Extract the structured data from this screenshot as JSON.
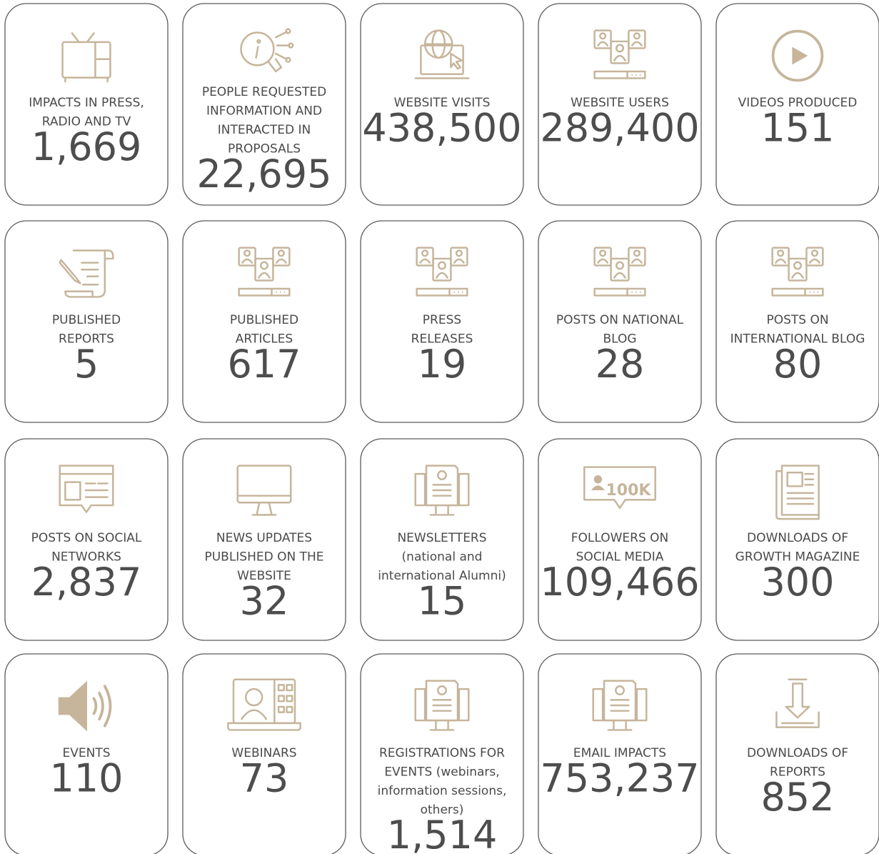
{
  "cards": [
    {
      "label": [
        "IMPACTS IN PRESS,",
        "RADIO AND TV"
      ],
      "value": "1,669"
    },
    {
      "label": [
        "PEOPLE REQUESTED",
        "INFORMATION AND",
        "INTERACTED IN",
        "PROPOSALS"
      ],
      "value": "22,695"
    },
    {
      "label": [
        "WEBSITE VISITS"
      ],
      "value": "438,500"
    },
    {
      "label": [
        "WEBSITE USERS"
      ],
      "value": "289,400"
    },
    {
      "label": [
        "VIDEOS PRODUCED"
      ],
      "value": "151"
    },
    {
      "label": [
        "PUBLISHED",
        "REPORTS"
      ],
      "value": "5"
    },
    {
      "label": [
        "PUBLISHED",
        "ARTICLES"
      ],
      "value": "617"
    },
    {
      "label": [
        "PRESS",
        "RELEASES"
      ],
      "value": "19"
    },
    {
      "label": [
        "POSTS ON NATIONAL",
        "BLOG"
      ],
      "value": "28"
    },
    {
      "label": [
        "POSTS ON",
        "INTERNATIONAL BLOG"
      ],
      "value": "80"
    },
    {
      "label": [
        "POSTS ON SOCIAL",
        "NETWORKS"
      ],
      "value": "2,837"
    },
    {
      "label": [
        "NEWS UPDATES",
        "PUBLISHED ON THE",
        "WEBSITE"
      ],
      "value": "32"
    },
    {
      "label": [
        "NEWSLETTERS",
        "(national and",
        "international Alumni)"
      ],
      "value": "15"
    },
    {
      "label": [
        "FOLLOWERS ON",
        "SOCIAL MEDIA"
      ],
      "value": "109,466",
      "icon_text": "100K"
    },
    {
      "label": [
        "DOWNLOADS OF",
        "GROWTH MAGAZINE"
      ],
      "value": "300"
    },
    {
      "label": [
        "EVENTS"
      ],
      "value": "110"
    },
    {
      "label": [
        "WEBINARS"
      ],
      "value": "73"
    },
    {
      "label": [
        "REGISTRATIONS FOR",
        "EVENTS  (webinars,",
        "information sessions,",
        "others)"
      ],
      "value": "1,514"
    },
    {
      "label": [
        "EMAIL IMPACTS"
      ],
      "value": "753,237"
    },
    {
      "label": [
        "DOWNLOADS OF",
        "REPORTS"
      ],
      "value": "852"
    }
  ]
}
